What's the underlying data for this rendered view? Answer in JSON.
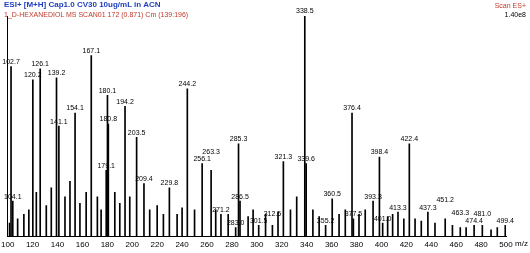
{
  "chart_data": {
    "type": "bar",
    "title": "ESI+ [M+H] Cap1.0 CV30 10ug/mL in ACN",
    "subtitle": "1_D-HEXANEDIOL MS SCAN01 172 (0.871) Cm (139:196)",
    "annotations": [
      "Scan ES+",
      "1.40e8"
    ],
    "x_label": "m/z",
    "x": [
      101.5,
      102.7,
      104.1,
      108,
      113,
      117,
      120.2,
      123,
      126.1,
      131,
      135,
      139.2,
      141.1,
      146,
      150,
      154.1,
      158,
      163,
      167.1,
      172,
      175,
      179.1,
      180.1,
      180.8,
      186,
      190,
      194.2,
      198,
      203.5,
      209.4,
      214,
      220,
      225,
      229.8,
      236,
      240,
      244.2,
      250,
      256.1,
      263.3,
      267,
      271.2,
      277,
      283.0,
      285.3,
      286.5,
      293,
      297,
      301.5,
      307,
      312.5,
      317,
      321.3,
      327,
      332,
      338.5,
      339.6,
      345,
      350,
      355.2,
      360.5,
      366,
      371,
      376.4,
      377.5,
      382,
      387,
      393.3,
      398.4,
      401.0,
      405,
      409,
      413.3,
      418,
      422.4,
      427,
      432,
      437.3,
      443,
      451.2,
      457,
      463.3,
      468,
      474.4,
      481.0,
      488,
      493,
      499.4
    ],
    "values": [
      6,
      77,
      16,
      8,
      10,
      12,
      71,
      20,
      76,
      14,
      22,
      72,
      50,
      18,
      25,
      56,
      15,
      20,
      82,
      18,
      12,
      30,
      64,
      51,
      20,
      15,
      59,
      18,
      45,
      24,
      12,
      14,
      10,
      22,
      10,
      13,
      67,
      12,
      33,
      30,
      12,
      10,
      10,
      4,
      42,
      16,
      9,
      12,
      5,
      10,
      5,
      11,
      34,
      12,
      18,
      100,
      33,
      12,
      9,
      5,
      17,
      10,
      12,
      56,
      8,
      10,
      12,
      16,
      36,
      6,
      9,
      10,
      11,
      8,
      42,
      8,
      7,
      11,
      6,
      8,
      5,
      4,
      4,
      5,
      5,
      3,
      4,
      5
    ],
    "peak_labels": [
      null,
      "102.7",
      "104.1",
      null,
      null,
      null,
      "120.2",
      null,
      "126.1",
      null,
      null,
      "139.2",
      "141.1",
      null,
      null,
      "154.1",
      null,
      null,
      "167.1",
      null,
      null,
      "179.1",
      "180.1",
      "180.8",
      null,
      null,
      "194.2",
      null,
      "203.5",
      "209.4",
      null,
      null,
      null,
      "229.8",
      null,
      null,
      "244.2",
      null,
      "256.1",
      "263.3",
      null,
      "271.2",
      null,
      "283.0",
      "285.3",
      "286.5",
      null,
      null,
      "301.5",
      null,
      "312.5",
      null,
      "321.3",
      null,
      null,
      "338.5",
      "339.6",
      null,
      null,
      "355.2",
      "360.5",
      null,
      null,
      "376.4",
      "377.5",
      null,
      null,
      "393.3",
      "398.4",
      "401.0",
      null,
      null,
      "413.3",
      null,
      "422.4",
      null,
      null,
      "437.3",
      null,
      "451.2",
      null,
      "463.3",
      null,
      "474.4",
      "481.0",
      null,
      null,
      "499.4"
    ],
    "color": "#000000",
    "xlim": [
      100,
      500
    ],
    "xticks": [
      100,
      120,
      140,
      160,
      180,
      200,
      220,
      240,
      260,
      280,
      300,
      320,
      340,
      360,
      380,
      400,
      420,
      440,
      460,
      480,
      500
    ],
    "ylim": [
      0,
      100
    ],
    "tick_labels": "x",
    "grid": false
  }
}
